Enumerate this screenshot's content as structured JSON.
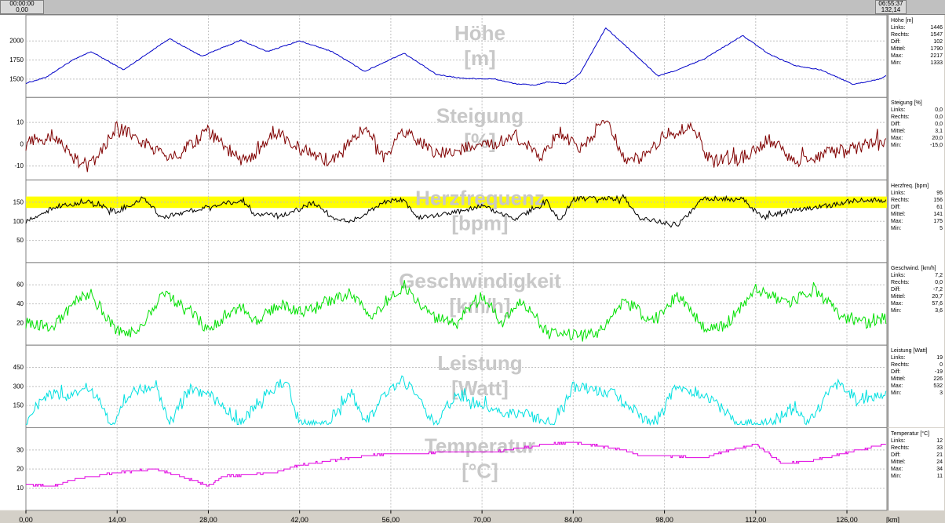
{
  "time_range": {
    "start_time": "00:00:00",
    "start_value": "0,00",
    "end_time": "06:55:37",
    "end_value": "132,14"
  },
  "x_axis": {
    "unit": "[km]",
    "ticks": [
      "0,00",
      "14,00",
      "28,00",
      "42,00",
      "56,00",
      "70,00",
      "84,00",
      "98,00",
      "112,00",
      "126,00"
    ]
  },
  "stat_labels": [
    "Links:",
    "Rechts:",
    "Diff:",
    "Mittel:",
    "Max:",
    "Min:"
  ],
  "colors": {
    "background": "#d4d0c8",
    "plot_bg": "#ffffff",
    "grid": "#c0c0c0",
    "heart_zone": "#ffff00",
    "watermark": "#c8c8c8"
  },
  "chart_data": [
    {
      "type": "line",
      "title": "Höhe",
      "unit": "[m]",
      "stat_title": "Höhe [m]",
      "color": "#0000c8",
      "ylim": [
        1300,
        2300
      ],
      "yticks": [
        "1500",
        "1750",
        "2000"
      ],
      "stats": [
        "1446",
        "1547",
        "102",
        "1790",
        "2217",
        "1333"
      ],
      "x": [
        0,
        3,
        7,
        10,
        15,
        22,
        27,
        33,
        37,
        42,
        47,
        52,
        55,
        58,
        63,
        67,
        72,
        75,
        78,
        80,
        83,
        85,
        89,
        93,
        97,
        100,
        104,
        110,
        114,
        118,
        122,
        127,
        131,
        132
      ],
      "y": [
        1446,
        1520,
        1740,
        1860,
        1620,
        2030,
        1800,
        2010,
        1860,
        2000,
        1860,
        1600,
        1720,
        1840,
        1560,
        1510,
        1500,
        1440,
        1420,
        1460,
        1440,
        1570,
        2170,
        1860,
        1540,
        1620,
        1760,
        2070,
        1830,
        1680,
        1620,
        1430,
        1500,
        1547
      ]
    },
    {
      "type": "line",
      "title": "Steigung",
      "unit": "[%]",
      "stat_title": "Steigung [%]",
      "color": "#800000",
      "ylim": [
        -15,
        20
      ],
      "yticks": [
        "-10",
        "0",
        "10"
      ],
      "stats": [
        "0,0",
        "0,0",
        "0,0",
        "3,1",
        "20,0",
        "-15,0"
      ],
      "x": [
        0,
        4,
        8,
        10,
        14,
        21,
        23,
        28,
        33,
        35,
        38,
        42,
        47,
        52,
        55,
        58,
        63,
        67,
        72,
        75,
        79,
        82,
        85,
        89,
        92,
        95,
        98,
        102,
        105,
        110,
        114,
        118,
        123,
        127,
        131,
        132
      ],
      "y": [
        0,
        4,
        -8,
        -10,
        8,
        -4,
        -6,
        6,
        -8,
        -6,
        6,
        -2,
        -8,
        8,
        -6,
        6,
        -4,
        -2,
        0,
        4,
        -6,
        6,
        -2,
        12,
        -8,
        -6,
        4,
        8,
        -8,
        -6,
        2,
        -8,
        -4,
        -2,
        2,
        0
      ]
    },
    {
      "type": "line",
      "title": "Herzfrequenz",
      "unit": "[bpm]",
      "stat_title": "Herzfreq. [bpm]",
      "color": "#000000",
      "ylim": [
        0,
        200
      ],
      "yticks": [
        "50",
        "100",
        "150"
      ],
      "zone": [
        135,
        165
      ],
      "stats": [
        "95",
        "156",
        "61",
        "141",
        "175",
        "5"
      ],
      "x": [
        0,
        5,
        10,
        14,
        18,
        21,
        26,
        33,
        35,
        40,
        44,
        47,
        50,
        55,
        58,
        60,
        65,
        70,
        75,
        80,
        82,
        84,
        88,
        92,
        94,
        100,
        104,
        110,
        113,
        118,
        123,
        127,
        132
      ],
      "y": [
        100,
        140,
        150,
        125,
        160,
        110,
        130,
        155,
        120,
        115,
        150,
        110,
        100,
        150,
        160,
        110,
        120,
        140,
        105,
        150,
        100,
        160,
        160,
        160,
        110,
        90,
        160,
        160,
        110,
        130,
        140,
        155,
        156
      ]
    },
    {
      "type": "line",
      "title": "Geschwindigkeit",
      "unit": "[km/h]",
      "stat_title": "Geschwind. [km/h]",
      "color": "#00e000",
      "ylim": [
        0,
        80
      ],
      "yticks": [
        "20",
        "40",
        "60"
      ],
      "stats": [
        "7,2",
        "0,0",
        "-7,2",
        "20,7",
        "57,6",
        "3,6"
      ],
      "x": [
        0,
        4,
        8,
        10,
        14,
        17,
        21,
        25,
        28,
        33,
        35,
        39,
        42,
        45,
        50,
        53,
        56,
        58,
        62,
        66,
        70,
        73,
        76,
        80,
        84,
        88,
        92,
        96,
        100,
        104,
        107,
        112,
        117,
        121,
        125,
        129,
        132
      ],
      "y": [
        20,
        15,
        45,
        50,
        12,
        10,
        50,
        35,
        12,
        38,
        20,
        40,
        30,
        40,
        50,
        25,
        45,
        60,
        30,
        20,
        50,
        20,
        45,
        10,
        8,
        10,
        45,
        20,
        50,
        15,
        15,
        55,
        40,
        55,
        30,
        20,
        25
      ]
    },
    {
      "type": "line",
      "title": "Leistung",
      "unit": "[Watt]",
      "stat_title": "Leistung [Watt]",
      "color": "#00e0e0",
      "ylim": [
        0,
        600
      ],
      "yticks": [
        "150",
        "300",
        "450"
      ],
      "stats": [
        "19",
        "0",
        "-19",
        "226",
        "532",
        "3"
      ],
      "x": [
        0,
        3,
        6,
        10,
        13,
        16,
        20,
        22,
        25,
        28,
        33,
        36,
        40,
        42,
        46,
        50,
        52,
        56,
        58,
        63,
        66,
        70,
        73,
        77,
        81,
        84,
        90,
        96,
        100,
        104,
        110,
        114,
        118,
        120,
        124,
        128,
        132
      ],
      "y": [
        20,
        250,
        220,
        300,
        0,
        250,
        300,
        0,
        280,
        250,
        0,
        200,
        350,
        0,
        0,
        250,
        0,
        300,
        350,
        0,
        250,
        150,
        100,
        80,
        0,
        300,
        250,
        0,
        300,
        230,
        0,
        0,
        150,
        0,
        320,
        200,
        250
      ]
    },
    {
      "type": "line",
      "title": "Temperatur",
      "unit": "[°C]",
      "stat_title": "Temperatur [°C]",
      "color": "#e000e0",
      "ylim": [
        0,
        40
      ],
      "yticks": [
        "10",
        "20",
        "30"
      ],
      "stats": [
        "12",
        "33",
        "21",
        "24",
        "34",
        "11"
      ],
      "x": [
        0,
        4,
        8,
        14,
        20,
        24,
        28,
        30,
        34,
        38,
        42,
        46,
        52,
        56,
        60,
        64,
        68,
        72,
        76,
        80,
        84,
        88,
        92,
        94,
        98,
        104,
        108,
        112,
        116,
        120,
        124,
        128,
        132
      ],
      "y": [
        12,
        11,
        15,
        18,
        20,
        16,
        11,
        16,
        17,
        18,
        22,
        24,
        27,
        28,
        28,
        29,
        29,
        29,
        31,
        33,
        34,
        32,
        30,
        27,
        27,
        26,
        30,
        33,
        23,
        24,
        27,
        30,
        33
      ]
    }
  ]
}
